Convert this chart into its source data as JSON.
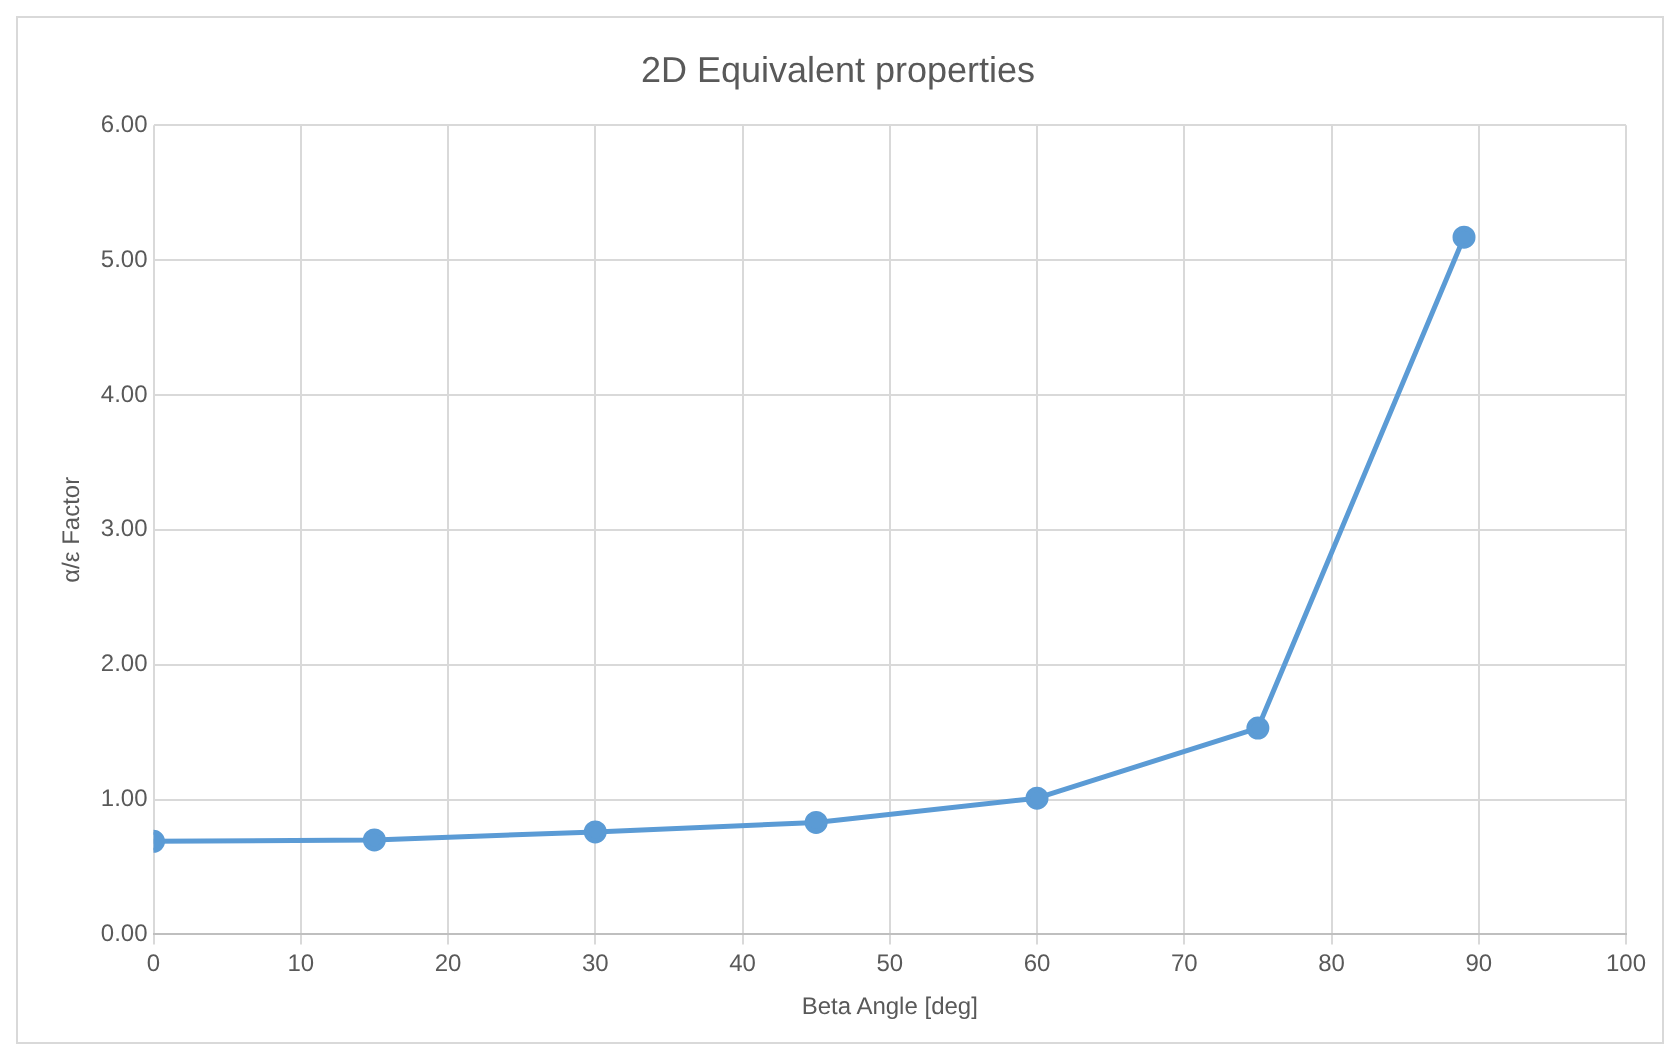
{
  "chart_data": {
    "type": "line",
    "title": "2D Equivalent properties",
    "xlabel": "Beta Angle [deg]",
    "ylabel": "α/ε Factor",
    "x": [
      0,
      15,
      30,
      45,
      60,
      75,
      89
    ],
    "series": [
      {
        "color": "#5b9bd5",
        "values": [
          0.69,
          0.7,
          0.76,
          0.83,
          1.01,
          1.53,
          5.17
        ]
      }
    ],
    "xlim": [
      0,
      100
    ],
    "xticks": [
      0,
      10,
      20,
      30,
      40,
      50,
      60,
      70,
      80,
      90,
      100
    ],
    "ylim": [
      0,
      6
    ],
    "yticks": [
      {
        "value": 0,
        "label": "0.00"
      },
      {
        "value": 1,
        "label": "1.00"
      },
      {
        "value": 2,
        "label": "2.00"
      },
      {
        "value": 3,
        "label": "3.00"
      },
      {
        "value": 4,
        "label": "4.00"
      },
      {
        "value": 5,
        "label": "5.00"
      },
      {
        "value": 6,
        "label": "6.00"
      }
    ],
    "grid": true,
    "legend": false,
    "marker": "circle",
    "line_style": "solid"
  }
}
